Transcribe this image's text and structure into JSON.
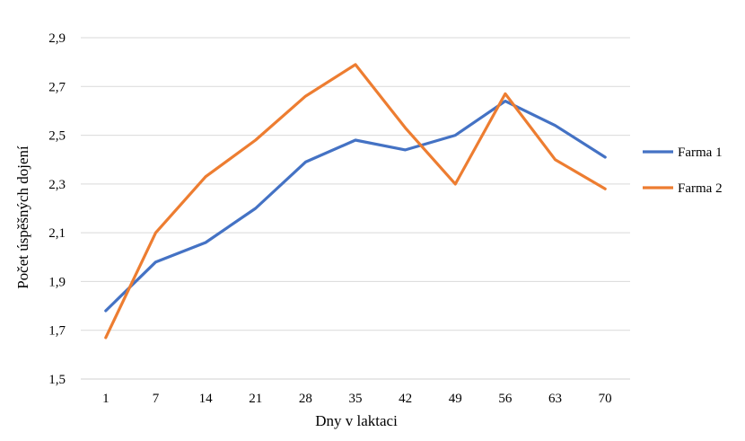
{
  "chart_data": {
    "type": "line",
    "title": "",
    "xlabel": "Dny v laktaci",
    "ylabel": "Počet úspěšných dojení",
    "categories": [
      "1",
      "7",
      "14",
      "21",
      "28",
      "35",
      "42",
      "49",
      "56",
      "63",
      "70"
    ],
    "ylim": [
      1.5,
      2.9
    ],
    "yticks": [
      "1,5",
      "1,7",
      "1,9",
      "2,1",
      "2,3",
      "2,5",
      "2,7",
      "2,9"
    ],
    "grid": true,
    "legend_position": "right",
    "series": [
      {
        "name": "Farma 1",
        "color": "#4472C4",
        "values": [
          1.78,
          1.98,
          2.06,
          2.2,
          2.39,
          2.48,
          2.44,
          2.5,
          2.64,
          2.54,
          2.41
        ]
      },
      {
        "name": "Farma 2",
        "color": "#ED7D31",
        "values": [
          1.67,
          2.1,
          2.33,
          2.48,
          2.66,
          2.79,
          2.53,
          2.3,
          2.67,
          2.4,
          2.28
        ]
      }
    ]
  }
}
